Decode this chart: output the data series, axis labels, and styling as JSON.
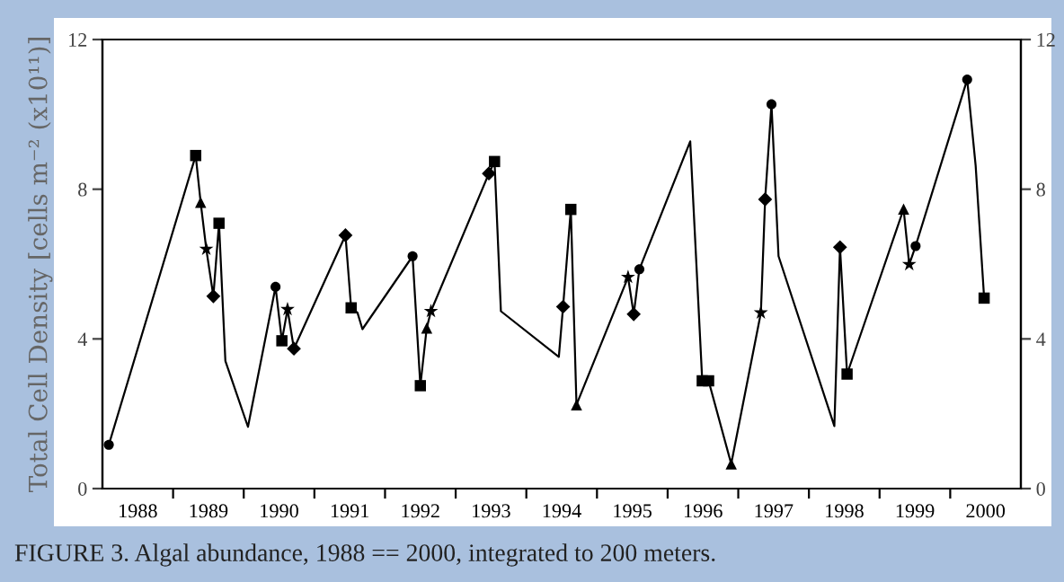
{
  "chart_data": {
    "type": "line",
    "ylabel": "Total Cell Density [cells m⁻² (x10¹¹)]",
    "annotations": [
      "FIGURE 3. Algal abundance, 1988 == 2000, integrated to 200 meters."
    ],
    "xlim": [
      1988,
      2001
    ],
    "xticks": [
      {
        "value": 1988.5,
        "label": "1988"
      },
      {
        "value": 1989.5,
        "label": "1989"
      },
      {
        "value": 1990.5,
        "label": "1990"
      },
      {
        "value": 1991.5,
        "label": "1991"
      },
      {
        "value": 1992.5,
        "label": "1992"
      },
      {
        "value": 1993.5,
        "label": "1993"
      },
      {
        "value": 1994.5,
        "label": "1994"
      },
      {
        "value": 1995.5,
        "label": "1995"
      },
      {
        "value": 1996.5,
        "label": "1996"
      },
      {
        "value": 1997.5,
        "label": "1997"
      },
      {
        "value": 1998.5,
        "label": "1998"
      },
      {
        "value": 1999.5,
        "label": "1999"
      },
      {
        "value": 2000.5,
        "label": "2000"
      },
      {
        "value": 1989,
        "label": null
      },
      {
        "value": 1990,
        "label": null
      },
      {
        "value": 1991,
        "label": null
      },
      {
        "value": 1992,
        "label": null
      },
      {
        "value": 1993,
        "label": null
      },
      {
        "value": 1994,
        "label": null
      },
      {
        "value": 1995,
        "label": null
      },
      {
        "value": 1996,
        "label": null
      },
      {
        "value": 1997,
        "label": null
      },
      {
        "value": 1998,
        "label": null
      },
      {
        "value": 1999,
        "label": null
      },
      {
        "value": 2000,
        "label": null
      }
    ],
    "ylim": [
      0,
      12
    ],
    "yticks": [
      0,
      4,
      8,
      12
    ],
    "y2lim": [
      0,
      12
    ],
    "y2ticks": [
      0,
      4,
      8,
      12
    ],
    "grid": false,
    "legend": false,
    "series": [
      {
        "color": "#000000",
        "marker": "none",
        "x": [
          1988.09,
          1989.32,
          1989.39,
          1989.47,
          1989.57,
          1989.65,
          1989.74,
          1990.06,
          1990.45,
          1990.54,
          1990.62,
          1990.71,
          1991.44,
          1991.52,
          1991.61,
          1991.68,
          1992.39,
          1992.5,
          1992.59,
          1992.65,
          1993.47,
          1993.55,
          1993.64,
          1994.46,
          1994.52,
          1994.63,
          1994.71,
          1995.44,
          1995.52,
          1995.6,
          1996.32,
          1996.49,
          1996.58,
          1996.9,
          1997.32,
          1997.38,
          1997.47,
          1997.57,
          1998.36,
          1998.44,
          1998.54,
          1999.34,
          1999.42,
          1999.51,
          2000.24,
          2000.36,
          2000.48
        ],
        "values": [
          1.17,
          8.9,
          7.65,
          6.4,
          5.14,
          7.09,
          3.41,
          1.65,
          5.39,
          3.95,
          4.79,
          3.74,
          6.77,
          4.83,
          4.7,
          4.26,
          6.21,
          2.75,
          4.29,
          4.74,
          8.42,
          8.74,
          4.74,
          3.52,
          4.86,
          7.46,
          2.24,
          5.65,
          4.66,
          5.86,
          9.28,
          2.88,
          2.88,
          0.66,
          4.7,
          7.73,
          10.27,
          6.21,
          1.67,
          6.45,
          3.06,
          7.47,
          5.99,
          6.48,
          10.93,
          8.63,
          5.09
        ]
      },
      {
        "type": "scatter",
        "color": "#000000",
        "marker": "circle",
        "x": [
          1988.09,
          1990.45,
          1992.39,
          1995.6,
          1997.47,
          1999.51,
          2000.24
        ],
        "values": [
          1.17,
          5.39,
          6.21,
          5.86,
          10.27,
          6.48,
          10.93
        ]
      },
      {
        "type": "scatter",
        "color": "#000000",
        "marker": "square",
        "x": [
          1989.32,
          1989.65,
          1990.54,
          1991.52,
          1992.5,
          1993.55,
          1994.63,
          1996.49,
          1996.58,
          1998.54,
          2000.48
        ],
        "values": [
          8.9,
          7.09,
          3.95,
          4.83,
          2.75,
          8.74,
          7.46,
          2.88,
          2.88,
          3.06,
          5.09
        ]
      },
      {
        "type": "scatter",
        "color": "#000000",
        "marker": "triangle",
        "x": [
          1989.39,
          1992.59,
          1994.71,
          1996.9,
          1999.34
        ],
        "values": [
          7.65,
          4.29,
          2.24,
          0.66,
          7.47
        ]
      },
      {
        "type": "scatter",
        "color": "#000000",
        "marker": "star",
        "x": [
          1989.47,
          1990.62,
          1992.65,
          1995.44,
          1997.32,
          1999.42
        ],
        "values": [
          6.4,
          4.79,
          4.74,
          5.65,
          4.7,
          5.99
        ]
      },
      {
        "type": "scatter",
        "color": "#000000",
        "marker": "diamond",
        "x": [
          1989.57,
          1990.71,
          1991.44,
          1993.47,
          1994.52,
          1995.52,
          1997.38,
          1998.44
        ],
        "values": [
          5.14,
          3.74,
          6.77,
          8.42,
          4.86,
          4.66,
          7.73,
          6.45
        ]
      }
    ]
  }
}
